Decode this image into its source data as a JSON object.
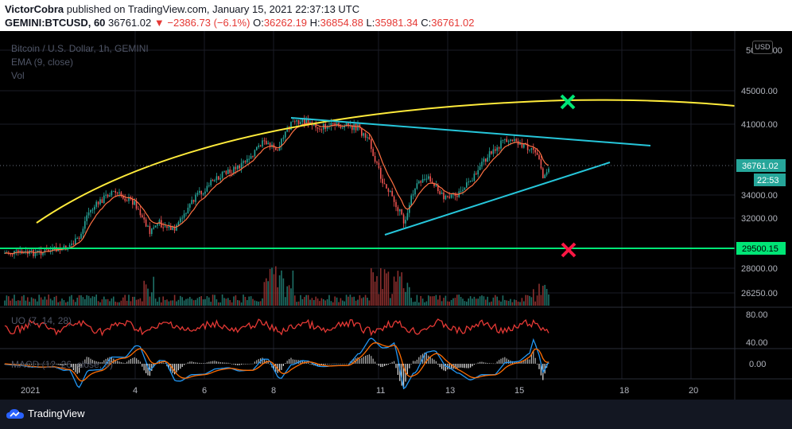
{
  "header": {
    "author": "VictorCobra",
    "published_text": "published on TradingView.com, January 15, 2021 22:37:13 UTC",
    "symbol": "GEMINI:BTCUSD, 60",
    "last": "36761.02",
    "change": "▼ −2386.73 (−6.1%)",
    "o_label": "O:",
    "o": "36262.19",
    "h_label": "H:",
    "h": "36854.88",
    "l_label": "L:",
    "l": "35981.34",
    "c_label": "C:",
    "c": "36761.02"
  },
  "legend": {
    "main": "Bitcoin / U.S. Dollar, 1h, GEMINI",
    "ema": "EMA (9, close)",
    "vol": "Vol",
    "uo": "UO (7, 14, 28)",
    "macd": "MACD (12, 26, close, 9)"
  },
  "axis": {
    "currency": "USD",
    "price_top": "50000.00",
    "price_ticks": [
      "45000.00",
      "41000.00",
      "34000.00",
      "32000.00",
      "28000.00",
      "26250.00"
    ],
    "last_price": "36761.02",
    "countdown": "22:53",
    "green_line_price": "29500.15",
    "uo_ticks": [
      "80.00",
      "40.00"
    ],
    "macd_ticks": [
      "0.00"
    ],
    "time_ticks": [
      "2021",
      "4",
      "6",
      "8",
      "11",
      "13",
      "15",
      "18",
      "20"
    ]
  },
  "colors": {
    "background": "#000000",
    "up": "#26a69a",
    "down": "#ef5350",
    "ema": "#ff7043",
    "arc": "#ffeb3b",
    "trendline": "#26c6da",
    "support": "#00e676",
    "uo": "#e53935",
    "macd": "#2196f3",
    "signal": "#ff6d00"
  },
  "footer": {
    "brand": "TradingView"
  }
}
